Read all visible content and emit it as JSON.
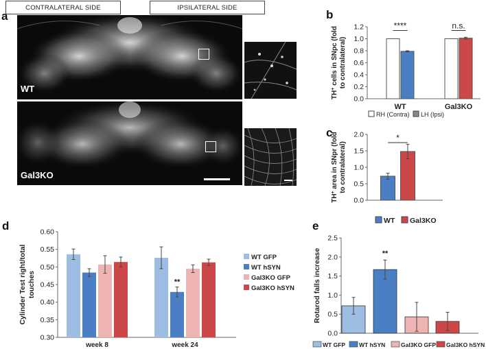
{
  "panels": {
    "a": {
      "letter": "a",
      "headers": [
        "CONTRALATERAL SIDE",
        "IPSILATERAL SIDE"
      ],
      "image_labels": [
        "WT",
        "Gal3KO"
      ]
    },
    "b_letter": "b",
    "c_letter": "c",
    "d_letter": "d",
    "e_letter": "e"
  },
  "chart_data": [
    {
      "id": "b",
      "type": "bar",
      "ylabel": "TH+ cells in SNpc (fold to contralateral)",
      "ylabel_parts": [
        "TH",
        "+",
        " cells in SNpc (fold",
        "to contralateral)"
      ],
      "ylim": [
        0,
        1.2
      ],
      "yticks": [
        "0.0",
        "0.2",
        "0.4",
        "0.6",
        "0.8",
        "1.0",
        "1.2"
      ],
      "categories": [
        "WT",
        "Gal3KO"
      ],
      "series": [
        {
          "name": "RH (Contra)",
          "color": "#ffffff",
          "values": [
            1.0,
            1.0
          ],
          "errors": [
            0.0,
            0.0
          ]
        },
        {
          "name": "LH (Ipsi)",
          "color": "#4a7fc4",
          "values": [
            0.79,
            1.01
          ],
          "errors": [
            0.01,
            0.015
          ]
        }
      ],
      "ipsi_colors": [
        "#4a7fc4",
        "#cc4848"
      ],
      "legend_colors": [
        "#ffffff",
        "#888888"
      ],
      "annotations": [
        "****",
        "n.s."
      ]
    },
    {
      "id": "c",
      "type": "bar",
      "ylabel": "TH+ area in SNpr (fold to contralateral)",
      "ylabel_parts": [
        "TH",
        "+",
        " area in SNpr (fold",
        "to contralateral)"
      ],
      "ylim": [
        0,
        2.0
      ],
      "yticks": [
        "0.0",
        "0.5",
        "1.0",
        "1.5",
        "2.0"
      ],
      "categories": [
        "WT",
        "Gal3KO"
      ],
      "values": [
        0.73,
        1.48
      ],
      "errors": [
        0.09,
        0.22
      ],
      "colors": [
        "#4a7fc4",
        "#cc4848"
      ],
      "legend": [
        "WT",
        "Gal3KO"
      ],
      "annotations": [
        "*"
      ]
    },
    {
      "id": "d",
      "type": "bar",
      "ylabel": "Cylinder Test right/total touches",
      "ylabel_lines": [
        "Cylinder Test right/total",
        "touches"
      ],
      "ylim": [
        0.3,
        0.6
      ],
      "yticks": [
        "0.30",
        "0.35",
        "0.40",
        "0.45",
        "0.50",
        "0.55",
        "0.60"
      ],
      "categories": [
        "week 8",
        "week 24"
      ],
      "series": [
        {
          "name": "WT GFP",
          "color": "#9dbde2",
          "values": [
            0.536,
            0.526
          ],
          "errors": [
            0.015,
            0.031
          ]
        },
        {
          "name": "WT hSYN",
          "color": "#4a7fc4",
          "values": [
            0.484,
            0.429
          ],
          "errors": [
            0.011,
            0.014
          ]
        },
        {
          "name": "Gal3KO GFP",
          "color": "#eeb3b3",
          "values": [
            0.507,
            0.495
          ],
          "errors": [
            0.025,
            0.011
          ]
        },
        {
          "name": "Gal3KO hSYN",
          "color": "#cc4848",
          "values": [
            0.514,
            0.513
          ],
          "errors": [
            0.014,
            0.009
          ]
        }
      ],
      "annotations": [
        "**"
      ]
    },
    {
      "id": "e",
      "type": "bar",
      "ylabel": "Rotarod falls increase",
      "ylim": [
        0,
        2.5
      ],
      "yticks": [
        "0.0",
        "0.5",
        "1.0",
        "1.5",
        "2.0",
        "2.5"
      ],
      "categories": [
        "WT GFP",
        "WT hSYN",
        "Gal3KO GFP",
        "Gal3KO hSYN"
      ],
      "values": [
        0.72,
        1.67,
        0.43,
        0.31
      ],
      "errors": [
        0.22,
        0.25,
        0.38,
        0.24
      ],
      "colors": [
        "#9dbde2",
        "#4a7fc4",
        "#eeb3b3",
        "#cc4848"
      ],
      "annotations": [
        "**"
      ]
    }
  ]
}
